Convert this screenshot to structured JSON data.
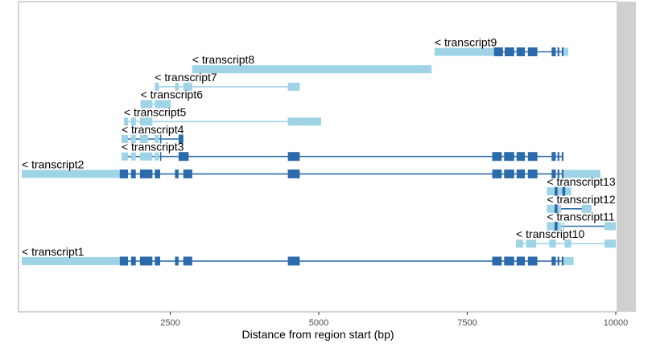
{
  "chart_data": {
    "type": "gene-structure",
    "xlabel": "Distance from region start (bp)",
    "xlim": [
      0,
      10000
    ],
    "xticks": [
      2500,
      5000,
      7500,
      10000
    ],
    "xtick_labels": [
      "2500",
      "5000",
      "7500",
      "10000"
    ],
    "grid": false,
    "strand": "reverse",
    "colors": {
      "utr": "#9fd3e6",
      "cds": "#2b6aab",
      "panel_border": "#a6a6a6",
      "side_strip": "#d0d0d0"
    },
    "transcripts": [
      {
        "name": "transcript9",
        "label": "< transcript9",
        "row": 1,
        "utr": [
          [
            6950,
            7950
          ],
          [
            9120,
            9200
          ]
        ],
        "cds": [
          [
            7950,
            8100
          ],
          [
            8130,
            8290
          ],
          [
            8330,
            8470
          ],
          [
            8520,
            8680
          ],
          [
            8920,
            8990
          ],
          [
            9020,
            9050
          ],
          [
            9090,
            9120
          ]
        ]
      },
      {
        "name": "transcript8",
        "label": "< transcript8",
        "row": 2,
        "utr": [
          [
            2870,
            6900
          ]
        ],
        "cds": []
      },
      {
        "name": "transcript7",
        "label": "< transcript7",
        "row": 3,
        "utr": [
          [
            2240,
            2310
          ],
          [
            2580,
            2640
          ],
          [
            2720,
            2870
          ],
          [
            4480,
            4680
          ]
        ],
        "cds": []
      },
      {
        "name": "transcript6",
        "label": "< transcript6",
        "row": 4,
        "utr": [
          [
            2000,
            2200
          ],
          [
            2240,
            2510
          ]
        ],
        "cds": []
      },
      {
        "name": "transcript5",
        "label": "< transcript5",
        "row": 5,
        "utr": [
          [
            1720,
            1790
          ],
          [
            1840,
            1920
          ],
          [
            1990,
            2200
          ],
          [
            4480,
            5040
          ]
        ],
        "cds": []
      },
      {
        "name": "transcript4",
        "label": "< transcript4",
        "row": 6,
        "utr": [
          [
            1680,
            1790
          ],
          [
            1840,
            1920
          ],
          [
            1990,
            2130
          ],
          [
            2240,
            2310
          ]
        ],
        "cds": [
          [
            2330,
            2350
          ],
          [
            2640,
            2720
          ]
        ]
      },
      {
        "name": "transcript3",
        "label": "< transcript3",
        "row": 7,
        "utr": [
          [
            1680,
            1790
          ],
          [
            1840,
            1920
          ],
          [
            1990,
            2200
          ],
          [
            2240,
            2310
          ]
        ],
        "cds": [
          [
            2330,
            2350
          ],
          [
            2640,
            2810
          ],
          [
            4480,
            4680
          ],
          [
            7920,
            8080
          ],
          [
            8120,
            8290
          ],
          [
            8330,
            8470
          ],
          [
            8520,
            8680
          ],
          [
            8920,
            8990
          ],
          [
            9020,
            9050
          ],
          [
            9090,
            9120
          ]
        ]
      },
      {
        "name": "transcript2",
        "label": "< transcript2",
        "row": 8,
        "utr": [
          [
            0,
            1650
          ],
          [
            9120,
            9740
          ]
        ],
        "cds": [
          [
            1650,
            1790
          ],
          [
            1840,
            1920
          ],
          [
            1990,
            2200
          ],
          [
            2240,
            2330
          ],
          [
            2580,
            2640
          ],
          [
            2720,
            2870
          ],
          [
            4480,
            4680
          ],
          [
            7920,
            8080
          ],
          [
            8120,
            8290
          ],
          [
            8330,
            8470
          ],
          [
            8520,
            8680
          ],
          [
            8920,
            8990
          ],
          [
            9020,
            9050
          ],
          [
            9090,
            9120
          ]
        ]
      },
      {
        "name": "transcript13",
        "label": "< transcript13",
        "row": 9,
        "utr": [
          [
            8840,
            8970
          ],
          [
            9020,
            9100
          ],
          [
            9150,
            9250
          ]
        ],
        "cds": [
          [
            8970,
            9020
          ],
          [
            9100,
            9150
          ]
        ]
      },
      {
        "name": "transcript12",
        "label": "< transcript12",
        "row": 10,
        "utr": [
          [
            8840,
            8970
          ],
          [
            9020,
            9080
          ],
          [
            9430,
            9590
          ]
        ],
        "cds": [
          [
            8970,
            9020
          ]
        ]
      },
      {
        "name": "transcript11",
        "label": "< transcript11",
        "row": 11,
        "utr": [
          [
            8840,
            8970
          ],
          [
            9020,
            9080
          ],
          [
            9100,
            9130
          ],
          [
            9810,
            10000
          ]
        ],
        "cds": [
          [
            8970,
            9020
          ]
        ]
      },
      {
        "name": "transcript10",
        "label": "< transcript10",
        "row": 12,
        "utr": [
          [
            8320,
            8440
          ],
          [
            8490,
            8660
          ],
          [
            8880,
            8990
          ],
          [
            9140,
            9250
          ],
          [
            9810,
            10000
          ]
        ],
        "cds": []
      },
      {
        "name": "transcript1",
        "label": "< transcript1",
        "row": 13,
        "utr": [
          [
            0,
            1650
          ],
          [
            9120,
            9290
          ]
        ],
        "cds": [
          [
            1650,
            1790
          ],
          [
            1840,
            1920
          ],
          [
            1990,
            2200
          ],
          [
            2240,
            2330
          ],
          [
            2580,
            2640
          ],
          [
            2720,
            2870
          ],
          [
            4480,
            4680
          ],
          [
            7920,
            8080
          ],
          [
            8120,
            8290
          ],
          [
            8330,
            8470
          ],
          [
            8520,
            8680
          ],
          [
            8920,
            8990
          ],
          [
            9020,
            9050
          ],
          [
            9090,
            9120
          ]
        ]
      }
    ]
  }
}
